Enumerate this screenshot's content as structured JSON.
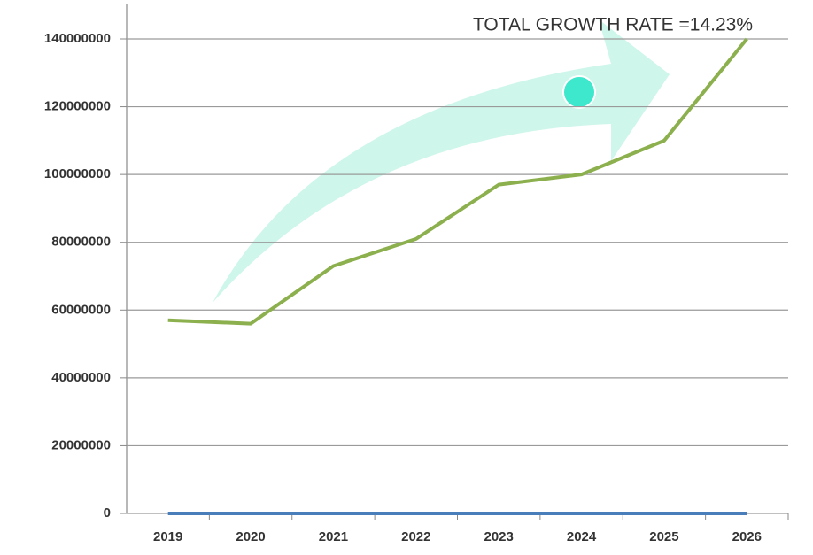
{
  "chart_data": {
    "type": "line",
    "annotation": "TOTAL GROWTH RATE =14.23%",
    "categories": [
      "2019",
      "2020",
      "2021",
      "2022",
      "2023",
      "2024",
      "2025",
      "2026"
    ],
    "series": [
      {
        "color": "#8db04e",
        "values": [
          57000000,
          56000000,
          73000000,
          81000000,
          97000000,
          100000000,
          110000000,
          140000000
        ]
      },
      {
        "color": "#4a7ebb",
        "values": [
          0,
          0,
          0,
          0,
          0,
          0,
          0,
          0
        ]
      }
    ],
    "ylim": [
      0,
      140000000
    ],
    "yticks": [
      0,
      20000000,
      40000000,
      60000000,
      80000000,
      100000000,
      120000000,
      140000000
    ],
    "grid": true
  }
}
